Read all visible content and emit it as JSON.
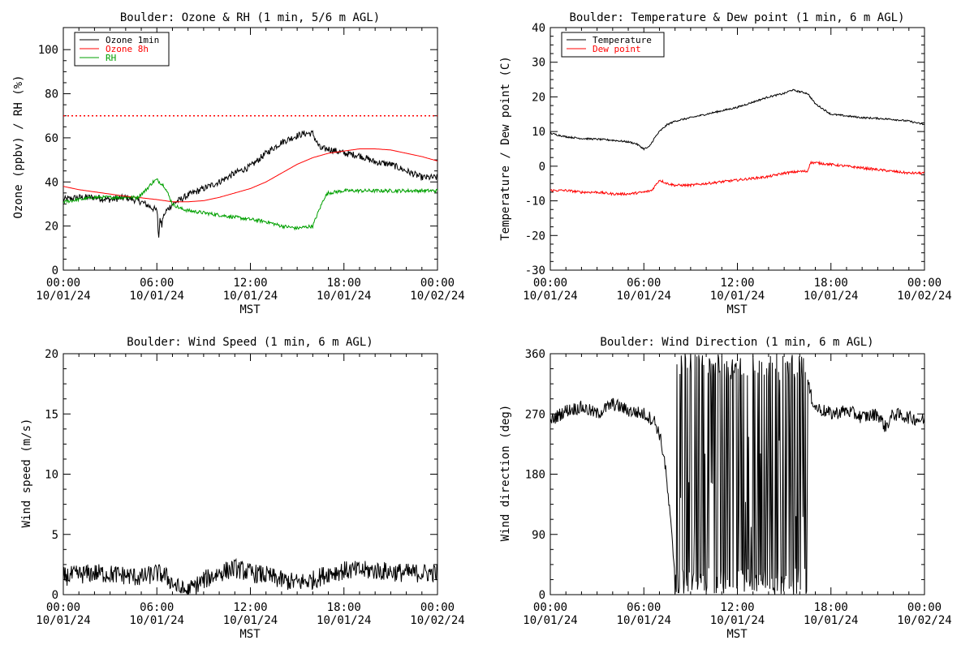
{
  "chart_data": [
    {
      "type": "line",
      "title": "Boulder: Ozone & RH (1 min, 5/6 m AGL)",
      "ylabel": "Ozone (ppbv) / RH (%)",
      "xlabel": "MST",
      "xlim": [
        "10/01/24 00:00",
        "10/02/24 00:00"
      ],
      "ylim": [
        0,
        110
      ],
      "yticks": [
        0,
        20,
        40,
        60,
        80,
        100
      ],
      "x_tick_times": [
        "00:00",
        "06:00",
        "12:00",
        "18:00",
        "00:00"
      ],
      "x_tick_dates": [
        "10/01/24",
        "10/01/24",
        "10/01/24",
        "10/01/24",
        "10/02/24"
      ],
      "legend": "top-left",
      "reference_line": {
        "y": 70,
        "style": "dotted",
        "color": "#ff0000"
      },
      "series": [
        {
          "name": "Ozone 1min",
          "color": "#000000",
          "noise": 1.5,
          "x": [
            "00:00",
            "01:00",
            "02:00",
            "03:00",
            "04:00",
            "05:00",
            "05:30",
            "06:00",
            "06:15",
            "06:30",
            "07:00",
            "07:30",
            "08:00",
            "09:00",
            "10:00",
            "11:00",
            "12:00",
            "13:00",
            "14:00",
            "15:00",
            "15:30",
            "16:00",
            "16:15",
            "16:30",
            "17:00",
            "18:00",
            "19:00",
            "20:00",
            "21:00",
            "22:00",
            "23:00",
            "24:00"
          ],
          "y": [
            32,
            33,
            33,
            32,
            33,
            31,
            29,
            27,
            22,
            26,
            30,
            32,
            34,
            37,
            40,
            44,
            47,
            53,
            58,
            61,
            62,
            62,
            58,
            55,
            55,
            53,
            52,
            49,
            48,
            45,
            42,
            42
          ]
        },
        {
          "name": "Ozone 8h",
          "color": "#ff0000",
          "noise": 0,
          "x": [
            "00:00",
            "01:00",
            "02:00",
            "03:00",
            "04:00",
            "05:00",
            "06:00",
            "07:00",
            "08:00",
            "09:00",
            "10:00",
            "11:00",
            "12:00",
            "13:00",
            "14:00",
            "15:00",
            "16:00",
            "17:00",
            "18:00",
            "19:00",
            "20:00",
            "21:00",
            "22:00",
            "23:00",
            "24:00"
          ],
          "y": [
            38,
            36.5,
            35.5,
            34.5,
            33.5,
            32.8,
            32,
            31,
            31,
            31.5,
            33,
            35,
            37,
            40,
            44,
            48,
            51,
            53,
            54,
            55,
            55,
            54.5,
            53,
            51.5,
            49.5
          ]
        },
        {
          "name": "RH",
          "color": "#00a000",
          "noise": 0.8,
          "x": [
            "00:00",
            "01:00",
            "02:00",
            "03:00",
            "04:00",
            "04:45",
            "05:15",
            "05:45",
            "06:00",
            "06:30",
            "07:00",
            "07:30",
            "08:00",
            "09:00",
            "10:00",
            "11:00",
            "12:00",
            "13:00",
            "14:00",
            "15:00",
            "16:00",
            "16:20",
            "16:45",
            "17:00",
            "18:00",
            "19:00",
            "20:00",
            "21:00",
            "22:00",
            "23:00",
            "24:00"
          ],
          "y": [
            31,
            32,
            33,
            33,
            33,
            33,
            36,
            40,
            41,
            38,
            30,
            28,
            27,
            26,
            25,
            24,
            23,
            22,
            20,
            19,
            20,
            26,
            33,
            35,
            36,
            36,
            36,
            36,
            36,
            36,
            36
          ]
        }
      ]
    },
    {
      "type": "line",
      "title": "Boulder: Temperature & Dew point (1 min, 6 m AGL)",
      "ylabel": "Temperature / Dew point (C)",
      "xlabel": "MST",
      "xlim": [
        "10/01/24 00:00",
        "10/02/24 00:00"
      ],
      "ylim": [
        -30,
        40
      ],
      "yticks": [
        -30,
        -20,
        -10,
        0,
        10,
        20,
        30,
        40
      ],
      "x_tick_times": [
        "00:00",
        "06:00",
        "12:00",
        "18:00",
        "00:00"
      ],
      "x_tick_dates": [
        "10/01/24",
        "10/01/24",
        "10/01/24",
        "10/01/24",
        "10/02/24"
      ],
      "legend": "top-left",
      "series": [
        {
          "name": "Temperature",
          "color": "#000000",
          "noise": 0.25,
          "x": [
            "00:00",
            "01:00",
            "02:00",
            "03:00",
            "04:00",
            "05:00",
            "05:30",
            "06:00",
            "06:20",
            "06:40",
            "07:00",
            "07:30",
            "08:00",
            "09:00",
            "10:00",
            "11:00",
            "12:00",
            "13:00",
            "14:00",
            "15:00",
            "15:30",
            "16:00",
            "16:30",
            "17:00",
            "18:00",
            "19:00",
            "20:00",
            "21:00",
            "22:00",
            "23:00",
            "24:00"
          ],
          "y": [
            9.5,
            8.5,
            8,
            7.8,
            7.5,
            7,
            6.5,
            5,
            5.5,
            8,
            10,
            12,
            13,
            14,
            15,
            16,
            17,
            18.5,
            20,
            21,
            22,
            21.5,
            21,
            18,
            15,
            14.5,
            14,
            13.8,
            13.5,
            13,
            12
          ]
        },
        {
          "name": "Dew point",
          "color": "#ff0000",
          "noise": 0.35,
          "x": [
            "00:00",
            "01:00",
            "02:00",
            "03:00",
            "04:00",
            "05:00",
            "06:00",
            "06:30",
            "07:00",
            "07:30",
            "08:00",
            "09:00",
            "10:00",
            "11:00",
            "12:00",
            "13:00",
            "14:00",
            "15:00",
            "16:00",
            "16:30",
            "16:40",
            "17:00",
            "18:00",
            "19:00",
            "20:00",
            "21:00",
            "22:00",
            "23:00",
            "24:00"
          ],
          "y": [
            -7,
            -7,
            -7.5,
            -7.5,
            -8,
            -8,
            -7.5,
            -7,
            -4,
            -5,
            -5.5,
            -5.5,
            -5,
            -4.5,
            -4,
            -3.5,
            -3,
            -2,
            -1.5,
            -1.5,
            1,
            1,
            0.5,
            0,
            -0.5,
            -1,
            -1.5,
            -2,
            -2
          ]
        }
      ]
    },
    {
      "type": "line",
      "title": "Boulder: Wind Speed (1 min, 6 m AGL)",
      "ylabel": "Wind speed (m/s)",
      "xlabel": "MST",
      "xlim": [
        "10/01/24 00:00",
        "10/02/24 00:00"
      ],
      "ylim": [
        0,
        20
      ],
      "yticks": [
        0,
        5,
        10,
        15,
        20
      ],
      "x_tick_times": [
        "00:00",
        "06:00",
        "12:00",
        "18:00",
        "00:00"
      ],
      "x_tick_dates": [
        "10/01/24",
        "10/01/24",
        "10/01/24",
        "10/01/24",
        "10/02/24"
      ],
      "legend": "none",
      "series": [
        {
          "name": "",
          "color": "#000000",
          "noise": 0.8,
          "x": [
            "00:00",
            "02:00",
            "04:00",
            "05:00",
            "06:00",
            "06:30",
            "07:00",
            "07:30",
            "08:00",
            "09:00",
            "10:00",
            "11:00",
            "12:00",
            "13:00",
            "14:00",
            "15:00",
            "16:00",
            "17:00",
            "18:00",
            "20:00",
            "22:00",
            "24:00"
          ],
          "y": [
            1.5,
            1.8,
            1.6,
            1.4,
            1.8,
            1.6,
            1.0,
            0.4,
            0.3,
            1.2,
            1.8,
            2.2,
            1.8,
            1.6,
            1.2,
            1.0,
            1.2,
            1.8,
            2.0,
            2.0,
            1.8,
            1.8
          ]
        }
      ]
    },
    {
      "type": "line",
      "title": "Boulder: Wind Direction (1 min, 6 m AGL)",
      "ylabel": "Wind direction (deg)",
      "xlabel": "MST",
      "xlim": [
        "10/01/24 00:00",
        "10/02/24 00:00"
      ],
      "ylim": [
        0,
        360
      ],
      "yticks": [
        0,
        90,
        180,
        270,
        360
      ],
      "x_tick_times": [
        "00:00",
        "06:00",
        "12:00",
        "18:00",
        "00:00"
      ],
      "x_tick_dates": [
        "10/01/24",
        "10/01/24",
        "10/01/24",
        "10/01/24",
        "10/02/24"
      ],
      "legend": "none",
      "series": [
        {
          "name": "",
          "color": "#000000",
          "noise": 10,
          "x": [
            "00:00",
            "01:00",
            "02:00",
            "03:00",
            "04:00",
            "05:00",
            "06:00",
            "06:40",
            "07:00",
            "07:20",
            "07:40",
            "08:00",
            "16:00",
            "16:20",
            "16:40",
            "17:00",
            "18:00",
            "19:00",
            "20:00",
            "21:00",
            "21:30",
            "22:00",
            "23:00",
            "24:00"
          ],
          "y": [
            260,
            275,
            280,
            270,
            285,
            275,
            270,
            260,
            240,
            200,
            120,
            30,
            30,
            340,
            300,
            280,
            270,
            275,
            265,
            270,
            250,
            270,
            265,
            260
          ],
          "wrap_window": [
            "08:00",
            "16:30"
          ]
        }
      ]
    }
  ]
}
